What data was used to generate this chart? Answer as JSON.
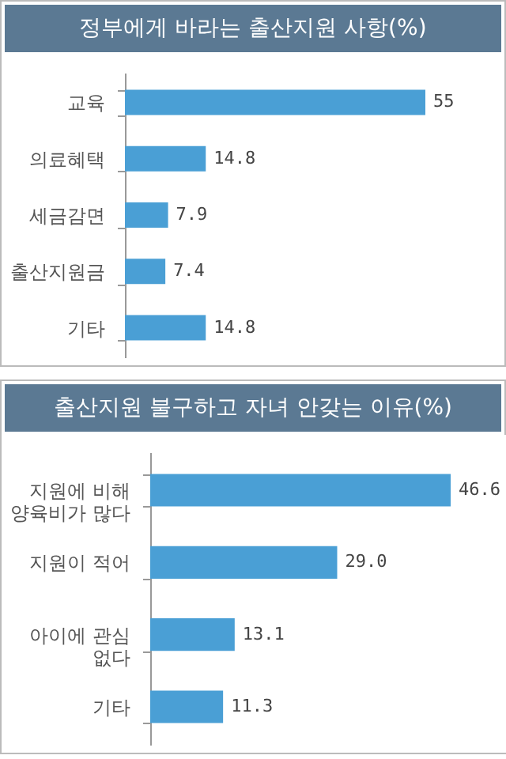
{
  "chart_data": [
    {
      "type": "bar",
      "orientation": "horizontal",
      "title": "정부에게 바라는 출산지원 사항(%)",
      "categories": [
        "교육",
        "의료혜택",
        "세금감면",
        "출산지원금",
        "기타"
      ],
      "values": [
        55,
        14.8,
        7.9,
        7.4,
        14.8
      ],
      "color": "#4a9fd5",
      "data_labels": true,
      "tick_labels": "y"
    },
    {
      "type": "bar",
      "orientation": "horizontal",
      "title": "출산지원 불구하고 자녀 안갖는 이유(%)",
      "categories": [
        "지원에 비해\n양육비가 많다",
        "지원이 적어",
        "아이에 관심\n없다",
        "기타"
      ],
      "values": [
        46.6,
        29.0,
        13.1,
        11.3
      ],
      "value_labels": [
        "46.6",
        "29.0",
        "13.1",
        "11.3"
      ],
      "color": "#4a9fd5",
      "tick_labels": "y"
    }
  ]
}
